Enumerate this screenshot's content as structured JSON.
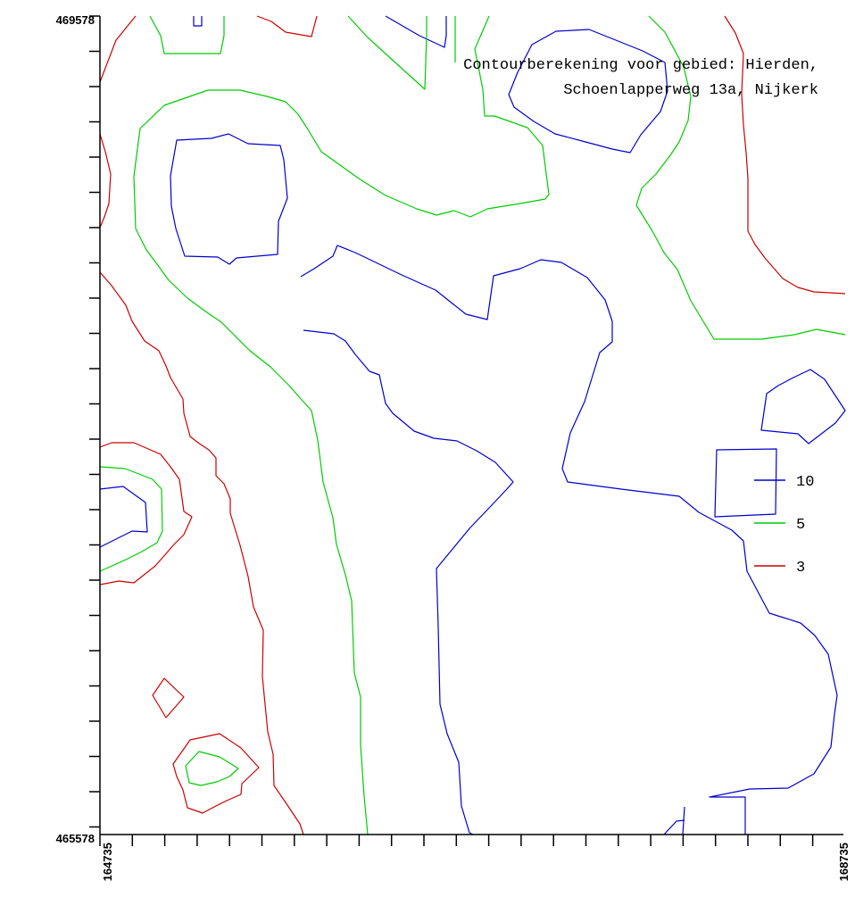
{
  "chart_data": {
    "type": "contour",
    "title_lines": [
      "Contourberekening voor gebied: Hierden,",
      "Schoenlapperweg 13a, Nijkerk"
    ],
    "xlim": [
      164735,
      168735
    ],
    "ylim": [
      465578,
      469578
    ],
    "x_tick_labels": [
      "164735",
      "168735"
    ],
    "y_tick_labels": [
      "469578",
      "465578"
    ],
    "legend": [
      {
        "label": "10",
        "color": "#0000cc"
      },
      {
        "label": "5",
        "color": "#00cc00"
      },
      {
        "label": "3",
        "color": "#cc0000"
      }
    ],
    "contours": [
      {
        "level": 10,
        "color": "#0000cc",
        "paths": [
          "M217,18 L217,29 L226,29 L226,18",
          "M432,18 L470,40 L498,53 L500,40 L500,18",
          "M596,50 L623,35 L660,33 L720,57 L745,70 L748,102 L740,125 L718,151 L706,171 L686,167 L656,159 L622,150 L598,136 L576,120 L570,106 L580,81 Z",
          "M198,157 L237,155 L256,150 L278,161 L314,163 L318,179 L322,222 L312,248 L311,285 L265,289 L257,296 L244,288 L207,287 L197,256 L192,231 L191,197 Z",
          "M337,310 L352,301 L373,287 L378,275 L398,283 L450,308 L488,325 L522,352 L546,358 L553,309 L583,301 L606,291 L629,294 L658,311 L678,336 L686,360 L686,383 L672,395 L655,450 L639,485 L630,525 L636,540 L696,548 L761,556 L783,574 L820,594 L833,606 L837,640 L862,687 L897,698 L913,712 L928,733 L938,779 L935,800 L931,837 L912,867 L883,883 L840,884 L795,893 L835,893 L835,935",
          "M340,370 L374,374 L387,382 L398,397 L414,416 L425,420 L432,452 L440,463 L464,483 L486,491 L512,494 L534,505 L555,518 L575,540 L567,549 L550,567 L527,591 L508,614 L489,637 L491,702 L493,789 L501,822 L514,854 L517,903 L526,933 L530,935",
          "M767,919 L758,920 L744,935",
          "M767,904 L765,935",
          "M859,441 L872,432 L889,423 L908,414 L924,425 L947,460 L936,474 L906,497 L894,486 L853,482 Z",
          "M803,504 L870,503 L869,576 L801,579 Z",
          "M112,548 L138,545 L163,563 L165,596 L148,595 L112,613"
        ]
      },
      {
        "level": 5,
        "color": "#00cc00",
        "paths": [
          "M168,18 L180,40 L184,60 L247,60 L251,40 L251,18",
          "M390,18 L412,42 L434,62 L476,100 L477,70 L478,40 L478,18",
          "M510,18 L510,70",
          "M548,18 L532,55 L541,100 L543,130 L554,130 L591,143 L608,163 L615,218 L611,223 L583,228 L546,234 L527,243 L509,236 L489,241 L467,234 L432,219 L402,200 L381,185 L360,170 L345,145 L334,128 L320,114 L299,108 L269,101 L233,101 L184,118 L157,144 L153,174 L150,198 L152,256 L164,280 L176,296 L189,314 L210,334 L229,348 L248,361 L260,373 L280,393 L303,411 L323,431 L339,449 L349,460 L356,493 L362,540 L373,580 L377,610 L387,644 L394,673 L397,754 L404,781 L404,835 L408,892 L412,935",
          "M727,18 L745,36 L766,75 L774,108 L771,135 L761,159 L751,174 L735,195 L719,211 L713,230 L731,259 L744,283 L759,302 L774,337 L800,380 L853,380 L890,375 L915,369 L947,375",
          "M112,523 L140,525 L171,537 L181,548 L182,595 L176,608 L159,618 L141,627 L121,636 L112,640",
          "M208,858 L223,842 L246,848 L267,861 L257,870 L243,876 L225,880 L212,877 Z"
        ]
      },
      {
        "level": 3,
        "color": "#cc0000",
        "paths": [
          "M152,18 L130,45 L112,92",
          "M288,18 L304,24 L320,36 L349,41 L355,18",
          "M812,18 L824,37 L833,60 L831,105 L833,140 L836,171 L838,200 L838,259 L846,274 L857,289 L877,312 L894,322 L912,327 L947,329",
          "M112,150 L118,170 L124,195 L122,228 L117,243 L112,255",
          "M112,305 L125,320 L141,342 L148,360 L162,382 L178,393 L186,410 L191,423 L205,447 L206,463 L213,489 L222,496 L234,504 L242,513 L242,533 L251,542 L258,559 L258,575 L269,611 L278,646 L284,680 L295,706 L294,758 L300,820 L306,845 L307,880 L324,905 L336,923 L340,935",
          "M112,501 L125,496 L150,496 L180,509 L191,523 L201,537 L206,573 L215,579 L206,599 L195,610 L174,634 L150,653 L133,651 L112,655",
          "M171,779 L184,760 L206,781 L186,804 Z",
          "M194,856 L213,829 L246,822 L270,838 L290,860 L271,878 L270,890 L254,897 L240,904 L227,911 L210,905 L205,885 L198,870 Z"
        ]
      }
    ]
  }
}
